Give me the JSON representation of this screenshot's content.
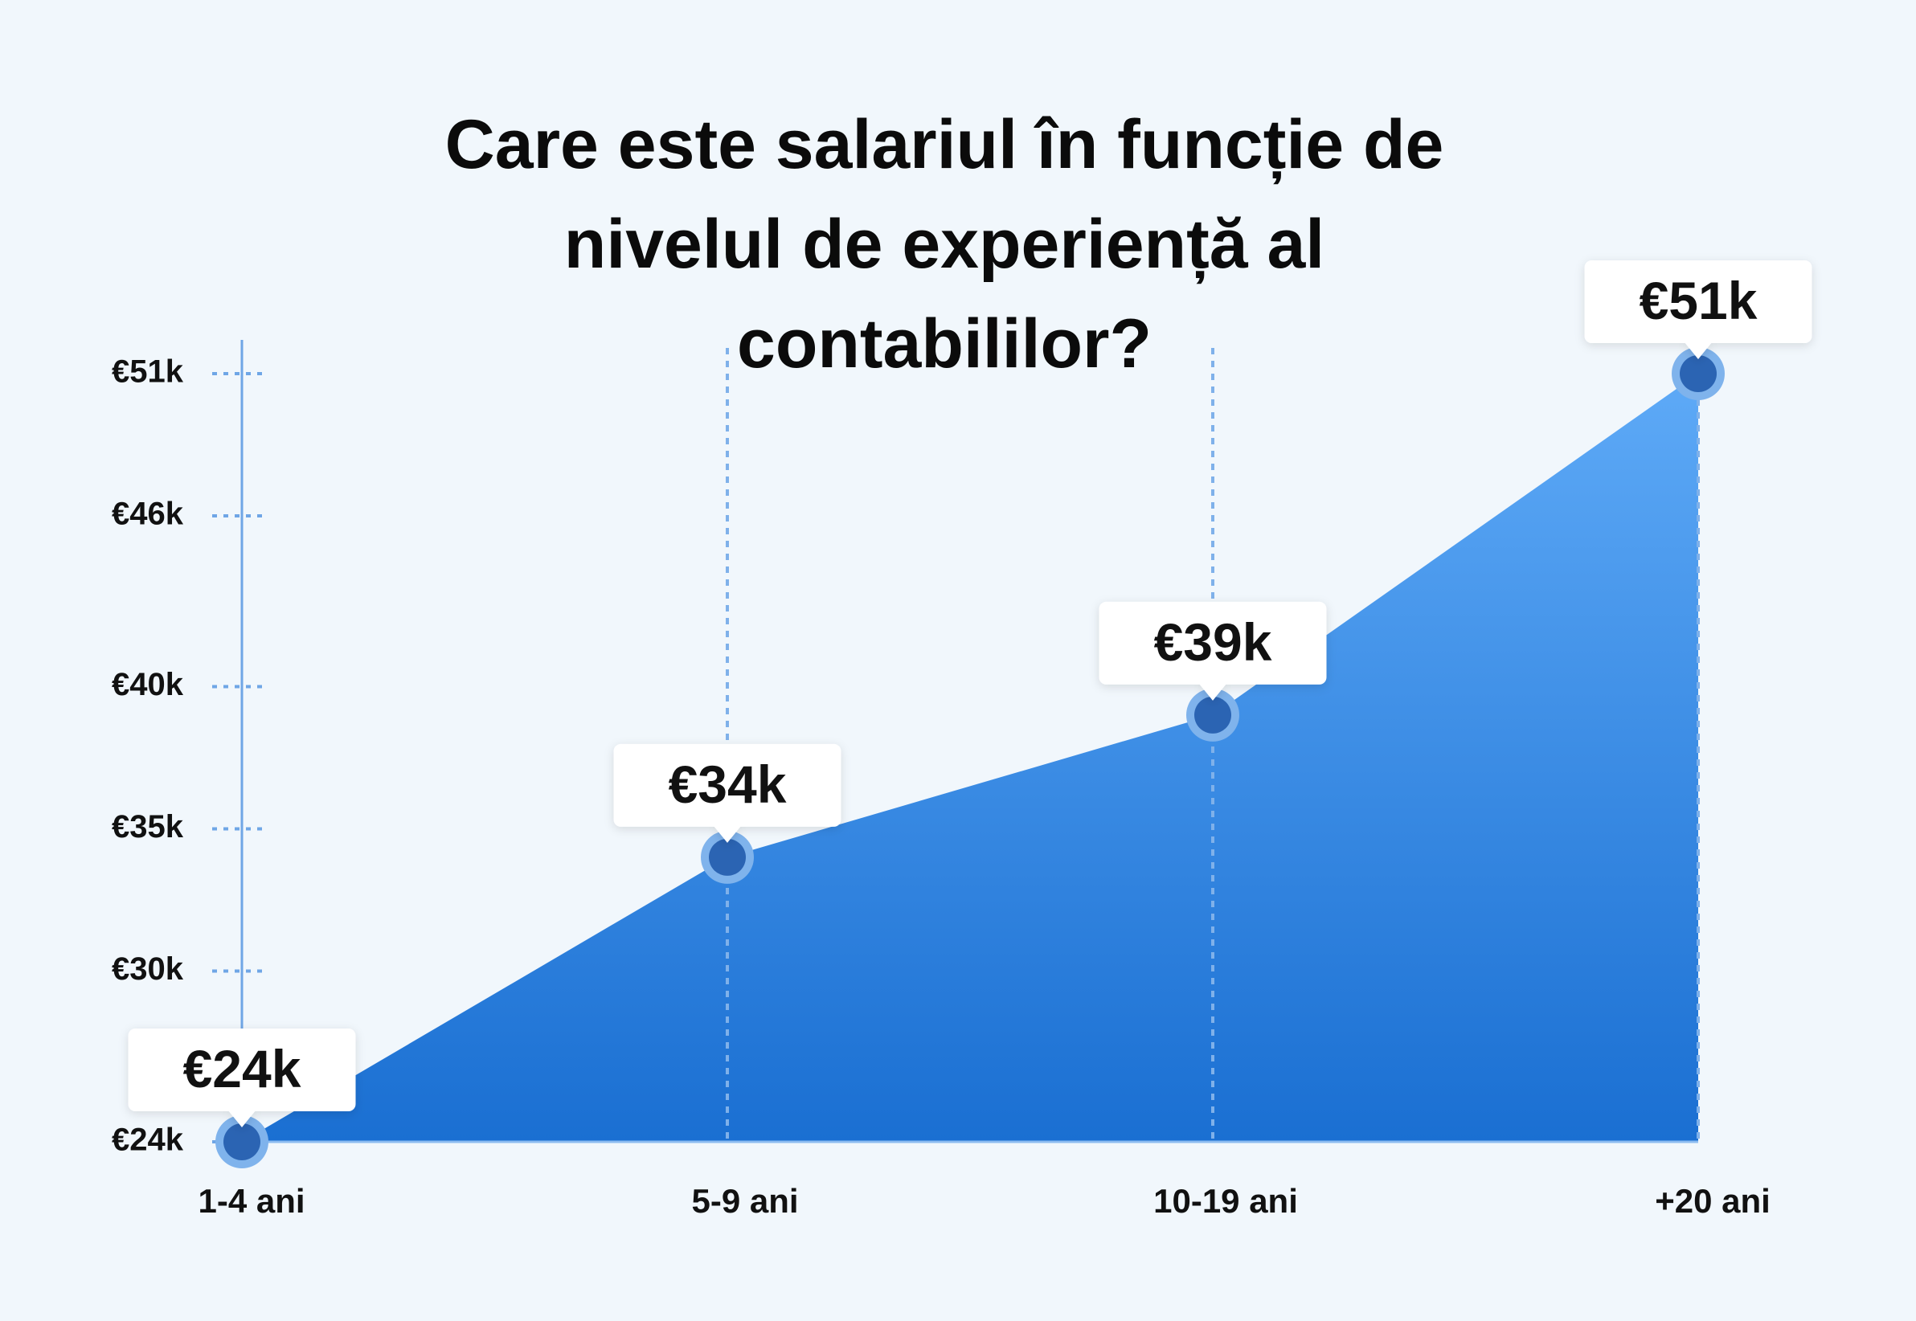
{
  "chart_data": {
    "type": "area",
    "title": "Care este salariul în funcție de nivelul de experiență al contabililor?",
    "categories": [
      "1-4 ani",
      "5-9 ani",
      "10-19 ani",
      "+20 ani"
    ],
    "values": [
      24,
      34,
      39,
      51
    ],
    "value_labels": [
      "€24k",
      "€34k",
      "€39k",
      "€51k"
    ],
    "color": "#1a6fd2",
    "ylim": [
      24,
      51
    ],
    "yticks": [
      {
        "value": 24,
        "label": "€24k"
      },
      {
        "value": 30,
        "label": "€30k"
      },
      {
        "value": 35,
        "label": "€35k"
      },
      {
        "value": 40,
        "label": "€40k"
      },
      {
        "value": 46,
        "label": "€46k"
      },
      {
        "value": 51,
        "label": "€51k"
      }
    ]
  }
}
